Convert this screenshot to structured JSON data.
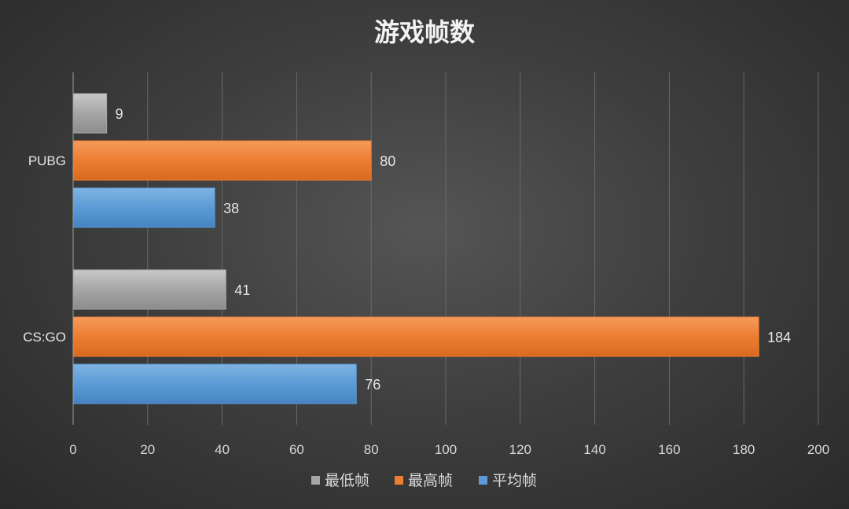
{
  "chart_data": {
    "type": "bar",
    "orientation": "horizontal",
    "title": "游戏帧数",
    "categories": [
      "PUBG",
      "CS:GO"
    ],
    "series": [
      {
        "name": "最低帧",
        "values": [
          9,
          41
        ],
        "color": "#a6a6a6"
      },
      {
        "name": "最高帧",
        "values": [
          80,
          184
        ],
        "color": "#ed7d31"
      },
      {
        "name": "平均帧",
        "values": [
          38,
          76
        ],
        "color": "#5b9bd5"
      }
    ],
    "xlim": [
      0,
      200
    ],
    "xticks": [
      0,
      20,
      40,
      60,
      80,
      100,
      120,
      140,
      160,
      180,
      200
    ],
    "grid": true,
    "legend_position": "bottom",
    "data_labels": true
  }
}
